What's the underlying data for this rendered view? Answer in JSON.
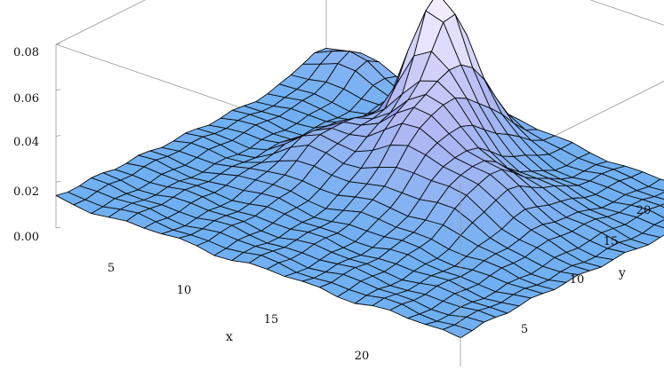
{
  "chart_data": {
    "type": "surface",
    "title": "",
    "xlabel": "x",
    "ylabel": "y",
    "zlabel": "",
    "xlim": [
      1,
      24
    ],
    "ylim": [
      1,
      24
    ],
    "zlim": [
      0,
      0.08
    ],
    "x_ticks": [
      5,
      10,
      15,
      20
    ],
    "y_ticks": [
      5,
      10,
      15,
      20
    ],
    "z_ticks": [
      "0.00",
      "0.02",
      "0.04",
      "0.06",
      "0.08"
    ],
    "z_tick_values": [
      0,
      0.02,
      0.04,
      0.06,
      0.08
    ],
    "grid_size": [
      24,
      24
    ],
    "base_level": 0.013,
    "peaks": [
      {
        "x": 10,
        "y": 20,
        "height": 0.053,
        "spread_x": 1.25,
        "spread_y": 1.6
      },
      {
        "x": 12,
        "y": 17,
        "height": 0.034,
        "spread_x": 1.6,
        "spread_y": 3.4
      },
      {
        "x": 16,
        "y": 14,
        "height": 0.02,
        "spread_x": 2.4,
        "spread_y": 2.8
      },
      {
        "x": 8,
        "y": 14,
        "height": 0.016,
        "spread_x": 1.3,
        "spread_y": 3.0
      },
      {
        "x": 3,
        "y": 23,
        "height": 0.012,
        "spread_x": 2.0,
        "spread_y": 1.5
      }
    ],
    "colors": {
      "surface_low": "#6fb0f2",
      "surface_mid": "#b2b8f4",
      "surface_peak": "#6f63ea",
      "surface_light": "#f2ecff",
      "mesh": "#0b0b0b",
      "box": "#9a9a9a"
    }
  }
}
